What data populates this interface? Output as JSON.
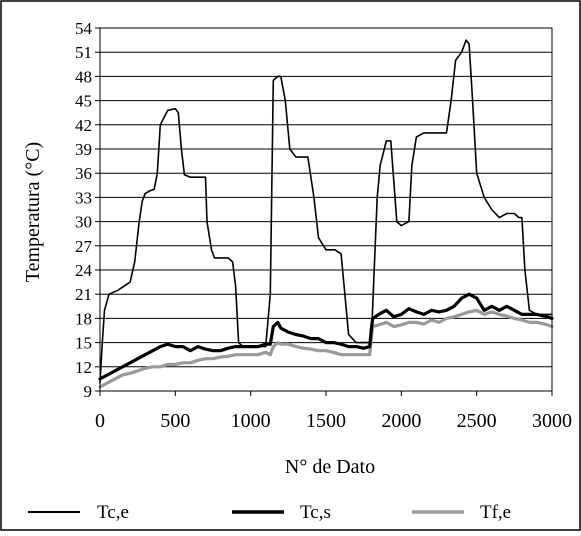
{
  "chart_data": {
    "type": "line",
    "title": "",
    "xlabel": "N° de Dato",
    "ylabel": "Temperatura (°C)",
    "xlim": [
      0,
      3000
    ],
    "ylim": [
      9,
      54
    ],
    "xticks": [
      0,
      500,
      1000,
      1500,
      2000,
      2500,
      3000
    ],
    "yticks": [
      9,
      12,
      15,
      18,
      21,
      24,
      27,
      30,
      33,
      36,
      39,
      42,
      45,
      48,
      51,
      54
    ],
    "grid": "horizontal",
    "legend_position": "bottom",
    "series": [
      {
        "name": "Tc,e",
        "color": "#000000",
        "style": "thin",
        "x": [
          0,
          15,
          30,
          60,
          120,
          200,
          230,
          260,
          280,
          300,
          330,
          360,
          380,
          400,
          450,
          500,
          520,
          540,
          560,
          600,
          650,
          700,
          710,
          740,
          760,
          800,
          850,
          880,
          900,
          920,
          950,
          1000,
          1050,
          1100,
          1130,
          1150,
          1180,
          1200,
          1230,
          1260,
          1300,
          1380,
          1420,
          1450,
          1500,
          1560,
          1600,
          1650,
          1700,
          1750,
          1800,
          1820,
          1840,
          1860,
          1880,
          1900,
          1930,
          1950,
          1970,
          2000,
          2050,
          2070,
          2100,
          2150,
          2200,
          2250,
          2300,
          2330,
          2360,
          2400,
          2430,
          2450,
          2470,
          2500,
          2550,
          2600,
          2650,
          2700,
          2750,
          2780,
          2800,
          2820,
          2850,
          2900,
          2950,
          3000
        ],
        "values": [
          10,
          15,
          19,
          21,
          21.5,
          22.5,
          25,
          30,
          32.5,
          33.5,
          33.8,
          34,
          36,
          42,
          43.8,
          44,
          43.5,
          39,
          35.8,
          35.5,
          35.5,
          35.5,
          30,
          26.5,
          25.5,
          25.5,
          25.5,
          25,
          22,
          15,
          14.5,
          14.5,
          14.5,
          14.5,
          21,
          47.5,
          48,
          48,
          45,
          39,
          38,
          38,
          33,
          28,
          26.5,
          26.5,
          26,
          16,
          15,
          15,
          15,
          24,
          33,
          37,
          38.5,
          40,
          40,
          35,
          30,
          29.5,
          30,
          37,
          40.5,
          41,
          41,
          41,
          41,
          45,
          50,
          51,
          52.5,
          52,
          46,
          36,
          33,
          31.5,
          30.5,
          31,
          31,
          30.5,
          30.5,
          24,
          19,
          18.5,
          18.5,
          18.5
        ]
      },
      {
        "name": "Tc,s",
        "color": "#000000",
        "style": "thick",
        "x": [
          0,
          50,
          100,
          150,
          200,
          250,
          300,
          350,
          400,
          450,
          500,
          550,
          600,
          650,
          700,
          750,
          800,
          850,
          900,
          950,
          1000,
          1050,
          1100,
          1130,
          1150,
          1180,
          1200,
          1250,
          1300,
          1350,
          1400,
          1450,
          1500,
          1550,
          1600,
          1650,
          1700,
          1750,
          1790,
          1800,
          1810,
          1850,
          1900,
          1950,
          2000,
          2050,
          2100,
          2150,
          2200,
          2250,
          2300,
          2350,
          2400,
          2450,
          2500,
          2550,
          2600,
          2650,
          2700,
          2750,
          2800,
          2850,
          2900,
          2950,
          3000
        ],
        "values": [
          10.5,
          11,
          11.5,
          12,
          12.5,
          13,
          13.5,
          14,
          14.5,
          14.8,
          14.5,
          14.5,
          14,
          14.5,
          14.2,
          14,
          14,
          14.3,
          14.5,
          14.5,
          14.5,
          14.5,
          14.8,
          14.8,
          17,
          17.5,
          16.8,
          16.3,
          16,
          15.8,
          15.5,
          15.5,
          15,
          15,
          14.8,
          14.5,
          14.5,
          14.3,
          14.5,
          16.5,
          18,
          18.5,
          19,
          18.2,
          18.5,
          19.2,
          18.8,
          18.5,
          19,
          18.8,
          19,
          19.5,
          20.5,
          21,
          20.5,
          19,
          19.5,
          19,
          19.5,
          19,
          18.5,
          18.5,
          18.5,
          18.3,
          18
        ]
      },
      {
        "name": "Tf,e",
        "color": "#999999",
        "style": "thick",
        "x": [
          0,
          50,
          100,
          150,
          200,
          250,
          300,
          350,
          400,
          450,
          500,
          550,
          600,
          650,
          700,
          750,
          800,
          850,
          900,
          950,
          1000,
          1050,
          1100,
          1130,
          1150,
          1180,
          1200,
          1250,
          1300,
          1350,
          1400,
          1450,
          1500,
          1550,
          1600,
          1650,
          1700,
          1750,
          1790,
          1800,
          1810,
          1850,
          1900,
          1950,
          2000,
          2050,
          2100,
          2150,
          2200,
          2250,
          2300,
          2350,
          2400,
          2450,
          2500,
          2550,
          2600,
          2650,
          2700,
          2750,
          2800,
          2850,
          2900,
          2950,
          3000
        ],
        "values": [
          9.5,
          10,
          10.5,
          11,
          11.2,
          11.5,
          11.8,
          12,
          12,
          12.3,
          12.3,
          12.5,
          12.5,
          12.8,
          13,
          13,
          13.2,
          13.3,
          13.5,
          13.5,
          13.5,
          13.5,
          13.8,
          13.5,
          14.5,
          15,
          14.8,
          14.8,
          14.5,
          14.3,
          14.2,
          14,
          14,
          13.8,
          13.5,
          13.5,
          13.5,
          13.5,
          13.5,
          15.5,
          17,
          17.2,
          17.5,
          17,
          17.2,
          17.5,
          17.5,
          17.3,
          17.8,
          17.5,
          18,
          18.2,
          18.5,
          18.8,
          19,
          18.5,
          18.8,
          18.5,
          18.3,
          18,
          17.8,
          17.5,
          17.5,
          17.3,
          17
        ]
      }
    ]
  }
}
